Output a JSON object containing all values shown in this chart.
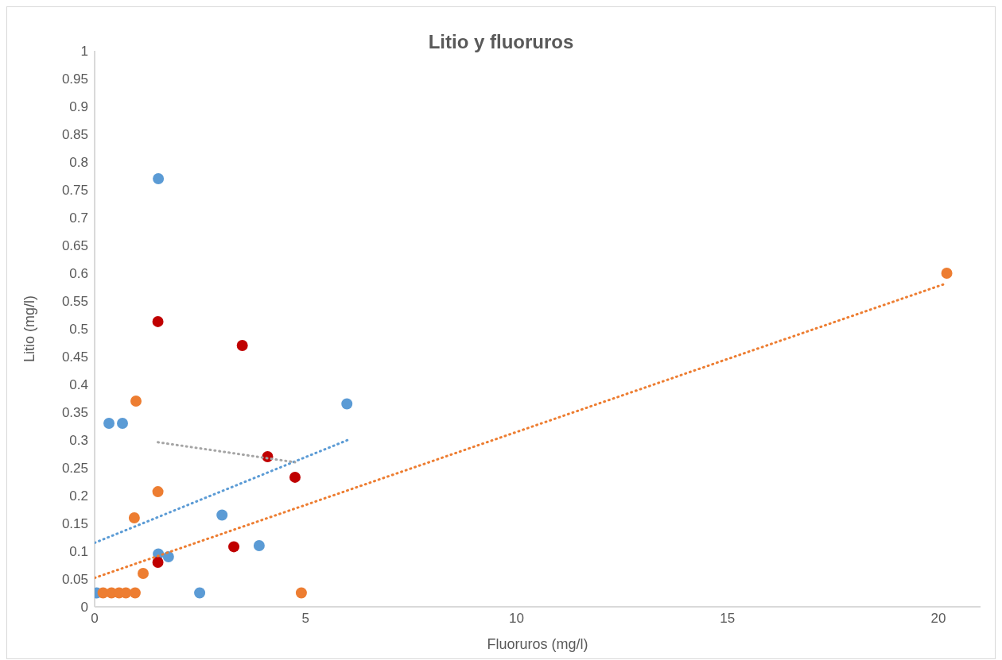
{
  "chart_data": {
    "type": "scatter",
    "title": "Litio y fluoruros",
    "xlabel": "Fluoruros (mg/l)",
    "ylabel": "Litio (mg/l)",
    "xlim": [
      0,
      21
    ],
    "xticks": [
      0,
      5,
      10,
      15,
      20
    ],
    "ylim": [
      0,
      1
    ],
    "yticks": [
      0,
      0.05,
      0.1,
      0.15,
      0.2,
      0.25,
      0.3,
      0.35,
      0.4,
      0.45,
      0.5,
      0.55,
      0.6,
      0.65,
      0.7,
      0.75,
      0.8,
      0.85,
      0.9,
      0.95,
      1
    ],
    "grid": false,
    "legend": false,
    "marker": "circle",
    "series": [
      {
        "color": "#5b9bd5",
        "x": [
          0.05,
          0.34,
          0.66,
          0.85,
          1.51,
          1.51,
          1.75,
          2.49,
          3.02,
          3.9,
          5.98
        ],
        "values": [
          0.025,
          0.33,
          0.33,
          null,
          0.77,
          0.095,
          0.09,
          0.025,
          0.165,
          0.11,
          0.365
        ]
      },
      {
        "color": "#ed7d31",
        "x": [
          0.2,
          0.4,
          0.58,
          0.74,
          0.96,
          0.98,
          1.5,
          0.94,
          1.15,
          4.9,
          20.2
        ],
        "values": [
          0.025,
          0.025,
          0.025,
          0.025,
          0.025,
          0.37,
          0.207,
          0.16,
          0.06,
          0.025,
          0.6
        ]
      },
      {
        "color": "#c00000",
        "x": [
          1.5,
          3.5,
          4.1,
          4.75,
          3.3,
          1.5
        ],
        "values": [
          0.513,
          0.47,
          0.27,
          0.233,
          0.108,
          0.08
        ]
      },
      {
        "type": "line",
        "line_style": "dotted",
        "marker": "none",
        "color": "#5b9bd5",
        "x": [
          0,
          6
        ],
        "values": [
          0.115,
          0.3
        ]
      },
      {
        "type": "line",
        "line_style": "dotted",
        "marker": "none",
        "color": "#ed7d31",
        "x": [
          0,
          20.2
        ],
        "values": [
          0.052,
          0.582
        ]
      },
      {
        "type": "line",
        "line_style": "dotted",
        "marker": "none",
        "color": "#a5a5a5",
        "x": [
          1.5,
          4.75
        ],
        "values": [
          0.296,
          0.26
        ]
      }
    ]
  }
}
